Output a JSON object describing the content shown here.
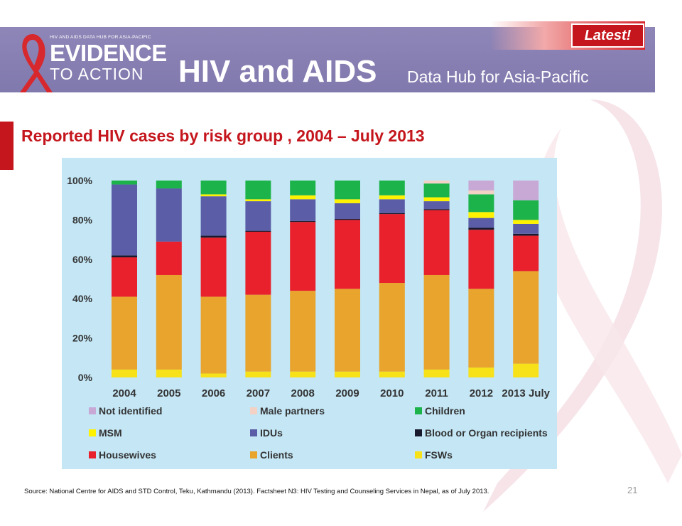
{
  "header": {
    "logo_small": "HIV AND AIDS DATA HUB FOR ASIA-PACIFIC",
    "logo_line1": "EVIDENCE",
    "logo_line2": "TO ACTION",
    "title": "HIV and AIDS",
    "subtitle": "Data Hub for Asia-Pacific",
    "latest_label": "Latest!"
  },
  "slide": {
    "title": "Reported HIV cases by risk group , 2004 – July 2013",
    "source": "Source: National Centre for AIDS and STD Control, Teku, Kathmandu (2013). Factsheet N3: HIV Testing and Counseling Services in Nepal, as of July 2013.",
    "page_number": "21"
  },
  "colors": {
    "brand_red": "#c4161c",
    "header_purple": "#8a81b4",
    "chart_bg": "#c4e6f5"
  },
  "chart_data": {
    "type": "bar",
    "stacked": true,
    "categories": [
      "2004",
      "2005",
      "2006",
      "2007",
      "2008",
      "2009",
      "2010",
      "2011",
      "2012",
      "2013 July"
    ],
    "yticks": [
      "0%",
      "20%",
      "40%",
      "60%",
      "80%",
      "100%"
    ],
    "ylim": [
      0,
      100
    ],
    "series": [
      {
        "name": "FSWs",
        "color": "#f7e118",
        "values": [
          4,
          4,
          2,
          3,
          3,
          3,
          3,
          4,
          5,
          7
        ]
      },
      {
        "name": "Clients",
        "color": "#e8a42c",
        "values": [
          37,
          48,
          39,
          39,
          41,
          42,
          45,
          48,
          40,
          47
        ]
      },
      {
        "name": "Housewives",
        "color": "#e9212d",
        "values": [
          20,
          17,
          30,
          32,
          35,
          35,
          35,
          33,
          30,
          18
        ]
      },
      {
        "name": "Blood or Organ recipients",
        "color": "#1a1a2e",
        "values": [
          1,
          0,
          1,
          0.5,
          0.5,
          0.5,
          0.5,
          0.5,
          1,
          1
        ]
      },
      {
        "name": "IDUs",
        "color": "#5b5ea6",
        "values": [
          36,
          27,
          20,
          15,
          11,
          8,
          7,
          4,
          5,
          5
        ]
      },
      {
        "name": "MSM",
        "color": "#fff200",
        "values": [
          0,
          0,
          1,
          1,
          2,
          2,
          2,
          2,
          3,
          2
        ]
      },
      {
        "name": "Children",
        "color": "#1db34b",
        "values": [
          2,
          4,
          7,
          9.5,
          7.5,
          9.5,
          7.5,
          7,
          9,
          10
        ]
      },
      {
        "name": "Male partners",
        "color": "#f3d1c4",
        "values": [
          0,
          0,
          0,
          0,
          0,
          0,
          0,
          1.5,
          2,
          0
        ]
      },
      {
        "name": "Not identified",
        "color": "#c8a9d6",
        "values": [
          0,
          0,
          0,
          0,
          0,
          0,
          0,
          0,
          5,
          10
        ]
      }
    ],
    "legend": {
      "placement": "bottom",
      "items": [
        {
          "label": "Not identified",
          "color": "#c8a9d6"
        },
        {
          "label": "Male partners",
          "color": "#f3d1c4"
        },
        {
          "label": "Children",
          "color": "#1db34b"
        },
        {
          "label": "MSM",
          "color": "#fff200"
        },
        {
          "label": "IDUs",
          "color": "#5b5ea6"
        },
        {
          "label": "Blood or Organ recipients",
          "color": "#1a1a2e"
        },
        {
          "label": "Housewives",
          "color": "#e9212d"
        },
        {
          "label": "Clients",
          "color": "#e8a42c"
        },
        {
          "label": "FSWs",
          "color": "#f7e118"
        }
      ]
    },
    "grid": false
  }
}
